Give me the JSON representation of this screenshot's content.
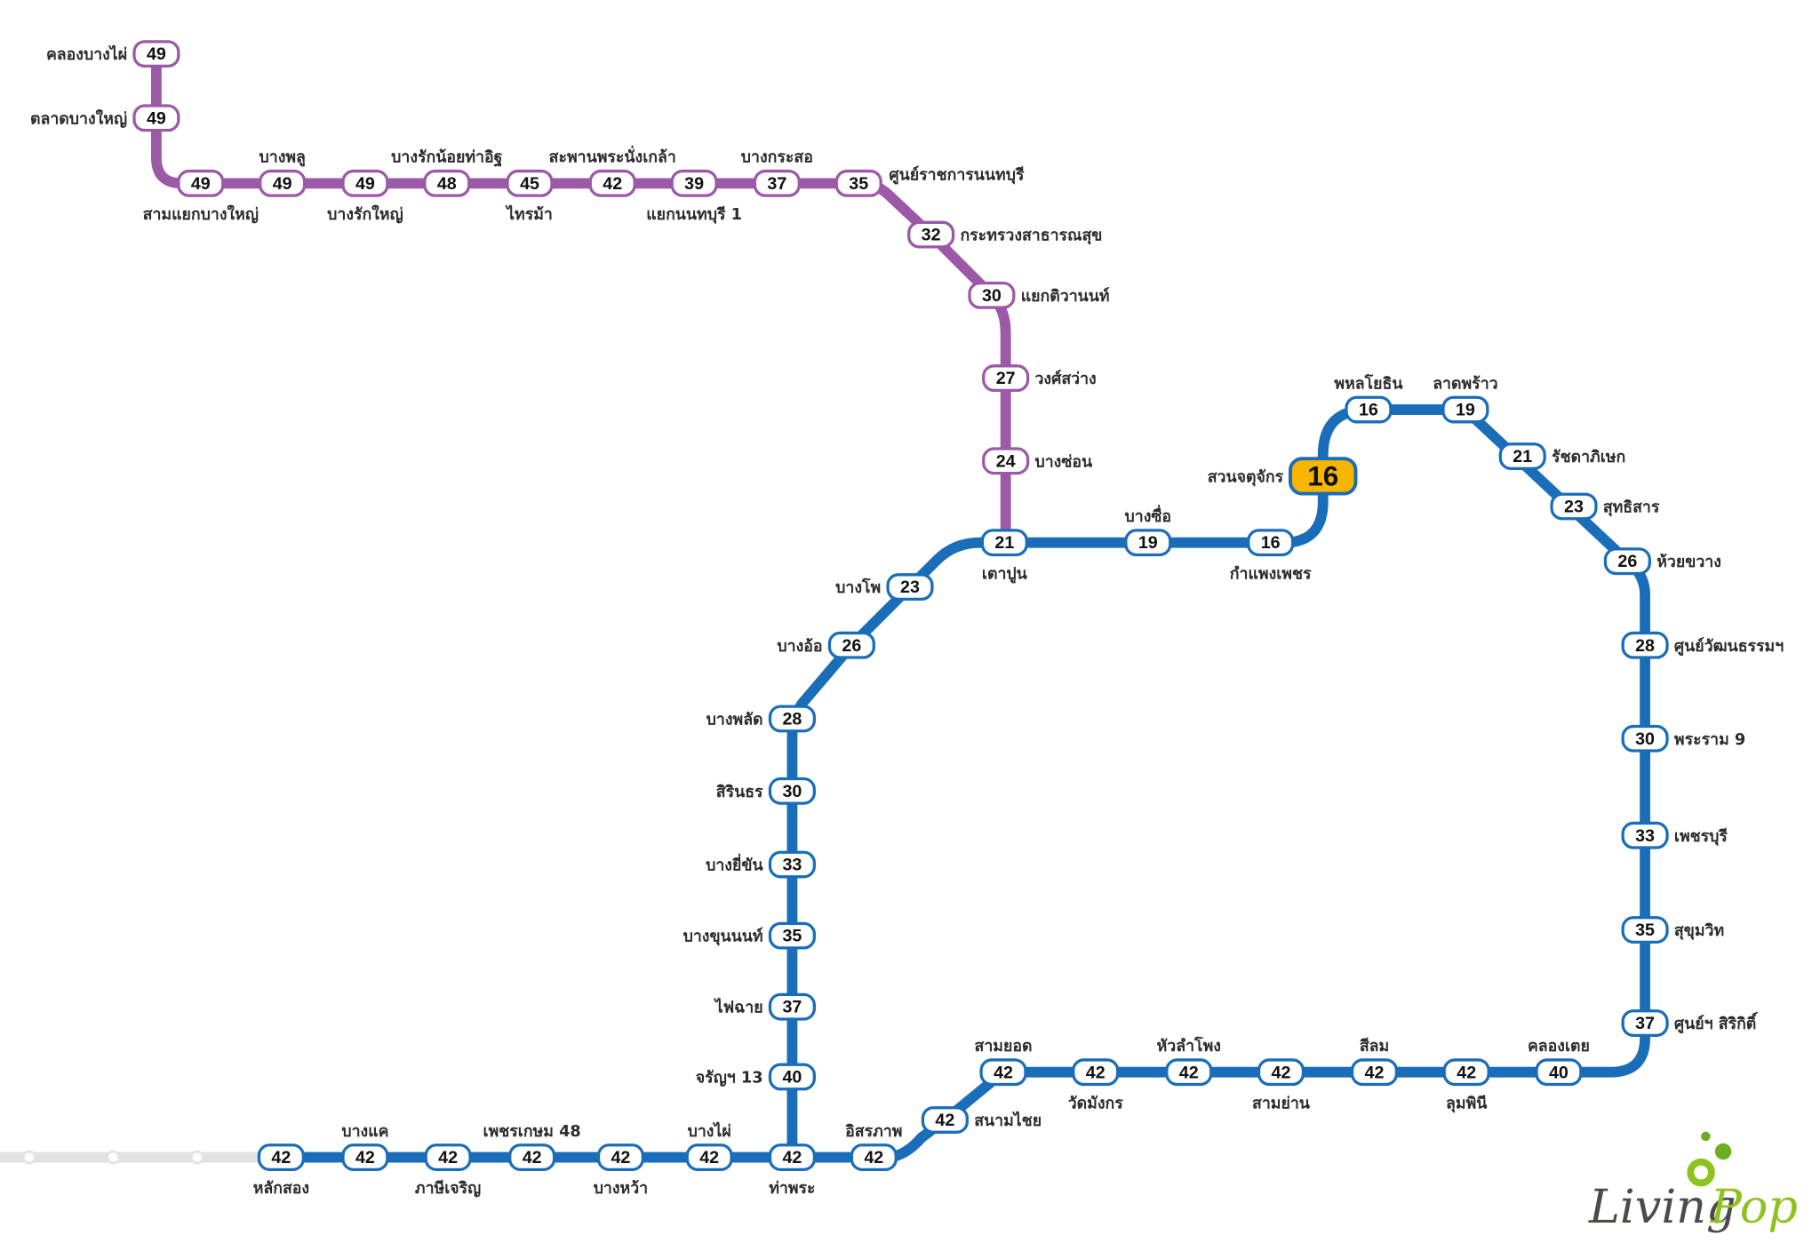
{
  "colors": {
    "purple_line": "#9B59A8",
    "blue_line": "#1A6DB8",
    "extension_line": "#E2E2E2",
    "highlight": "#F7B500",
    "logo_dark": "#4E4A47",
    "logo_green": "#8DC21F"
  },
  "purple_line": {
    "stations": [
      {
        "name": "คลองบางไผ่",
        "fare": "49"
      },
      {
        "name": "ตลาดบางใหญ่",
        "fare": "49"
      },
      {
        "name": "สามแยกบางใหญ่",
        "fare": "49"
      },
      {
        "name": "บางพลู",
        "fare": "49"
      },
      {
        "name": "บางรักใหญ่",
        "fare": "49"
      },
      {
        "name": "บางรักน้อยท่าอิฐ",
        "fare": "48"
      },
      {
        "name": "ไทรม้า",
        "fare": "45"
      },
      {
        "name": "สะพานพระนั่งเกล้า",
        "fare": "42"
      },
      {
        "name": "แยกนนทบุรี 1",
        "fare": "39"
      },
      {
        "name": "บางกระสอ",
        "fare": "37"
      },
      {
        "name": "ศูนย์ราชการนนทบุรี",
        "fare": "35"
      },
      {
        "name": "กระทรวงสาธารณสุข",
        "fare": "32"
      },
      {
        "name": "แยกติวานนท์",
        "fare": "30"
      },
      {
        "name": "วงศ์สว่าง",
        "fare": "27"
      },
      {
        "name": "บางซ่อน",
        "fare": "24"
      }
    ]
  },
  "blue_line": {
    "origin_station": {
      "name": "สวนจตุจักร",
      "fare": "16"
    },
    "stations": [
      {
        "name": "เตาปูน",
        "fare": "21"
      },
      {
        "name": "บางซื่อ",
        "fare": "19"
      },
      {
        "name": "กำแพงเพชร",
        "fare": "16"
      },
      {
        "name": "พหลโยธิน",
        "fare": "16"
      },
      {
        "name": "ลาดพร้าว",
        "fare": "19"
      },
      {
        "name": "รัชดาภิเษก",
        "fare": "21"
      },
      {
        "name": "สุทธิสาร",
        "fare": "23"
      },
      {
        "name": "ห้วยขวาง",
        "fare": "26"
      },
      {
        "name": "ศูนย์วัฒนธรรมฯ",
        "fare": "28"
      },
      {
        "name": "พระราม 9",
        "fare": "30"
      },
      {
        "name": "เพชรบุรี",
        "fare": "33"
      },
      {
        "name": "สุขุมวิท",
        "fare": "35"
      },
      {
        "name": "ศูนย์ฯ สิริกิติ์",
        "fare": "37"
      },
      {
        "name": "คลองเตย",
        "fare": "40"
      },
      {
        "name": "ลุมพินี",
        "fare": "42"
      },
      {
        "name": "สีลม",
        "fare": "42"
      },
      {
        "name": "สามย่าน",
        "fare": "42"
      },
      {
        "name": "หัวลำโพง",
        "fare": "42"
      },
      {
        "name": "วัดมังกร",
        "fare": "42"
      },
      {
        "name": "สามยอด",
        "fare": "42"
      },
      {
        "name": "สนามไชย",
        "fare": "42"
      },
      {
        "name": "อิสรภาพ",
        "fare": "42"
      },
      {
        "name": "ท่าพระ",
        "fare": "42"
      },
      {
        "name": "บางไผ่",
        "fare": "42"
      },
      {
        "name": "บางหว้า",
        "fare": "42"
      },
      {
        "name": "เพชรเกษม 48",
        "fare": "42"
      },
      {
        "name": "ภาษีเจริญ",
        "fare": "42"
      },
      {
        "name": "บางแค",
        "fare": "42"
      },
      {
        "name": "หลักสอง",
        "fare": "42"
      },
      {
        "name": "จรัญฯ 13",
        "fare": "40"
      },
      {
        "name": "ไฟฉาย",
        "fare": "37"
      },
      {
        "name": "บางขุนนนท์",
        "fare": "35"
      },
      {
        "name": "บางยี่ขัน",
        "fare": "33"
      },
      {
        "name": "สิรินธร",
        "fare": "30"
      },
      {
        "name": "บางพลัด",
        "fare": "28"
      },
      {
        "name": "บางอ้อ",
        "fare": "26"
      },
      {
        "name": "บางโพ",
        "fare": "23"
      }
    ]
  },
  "logo": {
    "text_dark": "Living",
    "text_green": "Pop"
  }
}
